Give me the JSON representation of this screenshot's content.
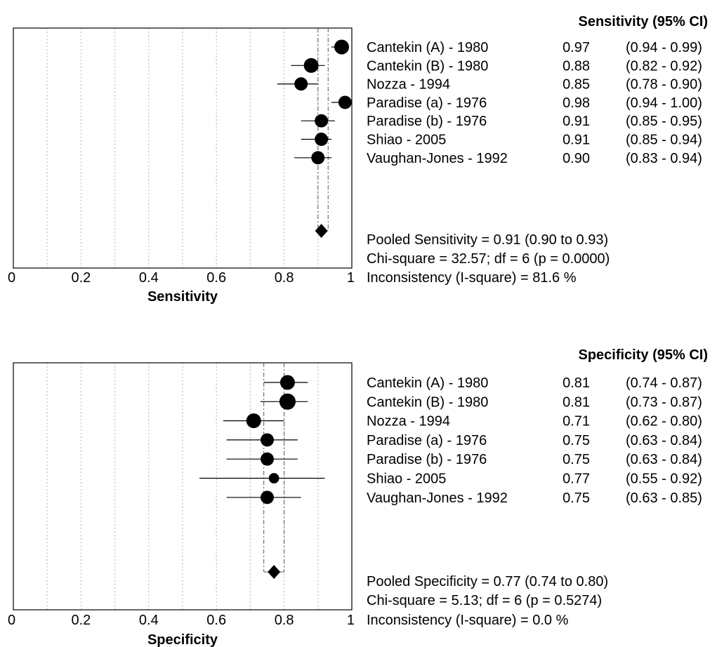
{
  "chart_data": [
    {
      "type": "forest",
      "xlabel": "Sensitivity",
      "xlim": [
        0,
        1
      ],
      "xticks": [
        "0",
        "0.2",
        "0.4",
        "0.6",
        "0.8",
        "1"
      ],
      "grid": "vertical dotted",
      "header": "Sensitivity (95% CI)",
      "studies": [
        {
          "name": "Cantekin (A) - 1980",
          "est": 0.97,
          "lo": 0.94,
          "hi": 0.99,
          "est_label": "0.97",
          "ci_label": "(0.94 - 0.99)",
          "weight": 1.0
        },
        {
          "name": "Cantekin (B) - 1980",
          "est": 0.88,
          "lo": 0.82,
          "hi": 0.92,
          "est_label": "0.88",
          "ci_label": "(0.82 - 0.92)",
          "weight": 1.0
        },
        {
          "name": "Nozza - 1994",
          "est": 0.85,
          "lo": 0.78,
          "hi": 0.9,
          "est_label": "0.85",
          "ci_label": "(0.78 - 0.90)",
          "weight": 0.9
        },
        {
          "name": "Paradise (a) - 1976",
          "est": 0.98,
          "lo": 0.94,
          "hi": 1.0,
          "est_label": "0.98",
          "ci_label": "(0.94 - 1.00)",
          "weight": 0.9
        },
        {
          "name": "Paradise (b) - 1976",
          "est": 0.91,
          "lo": 0.85,
          "hi": 0.95,
          "est_label": "0.91",
          "ci_label": "(0.85 - 0.95)",
          "weight": 0.9
        },
        {
          "name": "Shiao  - 2005",
          "est": 0.91,
          "lo": 0.85,
          "hi": 0.94,
          "est_label": "0.91",
          "ci_label": "(0.85 - 0.94)",
          "weight": 0.9
        },
        {
          "name": "Vaughan-Jones - 1992",
          "est": 0.9,
          "lo": 0.83,
          "hi": 0.94,
          "est_label": "0.90",
          "ci_label": "(0.83 - 0.94)",
          "weight": 0.9
        }
      ],
      "pooled": {
        "est": 0.91,
        "lo": 0.9,
        "hi": 0.93
      },
      "stats": [
        "Pooled Sensitivity = 0.91 (0.90 to 0.93)",
        "Chi-square = 32.57; df =  6 (p = 0.0000)",
        "Inconsistency (I-square) = 81.6 %"
      ]
    },
    {
      "type": "forest",
      "xlabel": "Specificity",
      "xlim": [
        0,
        1
      ],
      "xticks": [
        "0",
        "0.2",
        "0.4",
        "0.6",
        "0.8",
        "1"
      ],
      "grid": "vertical dotted",
      "header": "Specificity (95% CI)",
      "studies": [
        {
          "name": "Cantekin (A) - 1980",
          "est": 0.81,
          "lo": 0.74,
          "hi": 0.87,
          "est_label": "0.81",
          "ci_label": "(0.74 - 0.87)",
          "weight": 1.0
        },
        {
          "name": "Cantekin (B) - 1980",
          "est": 0.81,
          "lo": 0.73,
          "hi": 0.87,
          "est_label": "0.81",
          "ci_label": "(0.73 - 0.87)",
          "weight": 1.1
        },
        {
          "name": "Nozza - 1994",
          "est": 0.71,
          "lo": 0.62,
          "hi": 0.8,
          "est_label": "0.71",
          "ci_label": "(0.62 - 0.80)",
          "weight": 1.0
        },
        {
          "name": "Paradise (a) - 1976",
          "est": 0.75,
          "lo": 0.63,
          "hi": 0.84,
          "est_label": "0.75",
          "ci_label": "(0.63 - 0.84)",
          "weight": 0.9
        },
        {
          "name": "Paradise (b) - 1976",
          "est": 0.75,
          "lo": 0.63,
          "hi": 0.84,
          "est_label": "0.75",
          "ci_label": "(0.63 - 0.84)",
          "weight": 0.9
        },
        {
          "name": "Shiao  - 2005",
          "est": 0.77,
          "lo": 0.55,
          "hi": 0.92,
          "est_label": "0.77",
          "ci_label": "(0.55 - 0.92)",
          "weight": 0.7
        },
        {
          "name": "Vaughan-Jones - 1992",
          "est": 0.75,
          "lo": 0.63,
          "hi": 0.85,
          "est_label": "0.75",
          "ci_label": "(0.63 - 0.85)",
          "weight": 0.9
        }
      ],
      "pooled": {
        "est": 0.77,
        "lo": 0.74,
        "hi": 0.8
      },
      "stats": [
        "Pooled Specificity = 0.77 (0.74 to 0.80)",
        "Chi-square = 5.13; df =  6 (p = 0.5274)",
        "Inconsistency (I-square) = 0.0 %"
      ]
    }
  ]
}
